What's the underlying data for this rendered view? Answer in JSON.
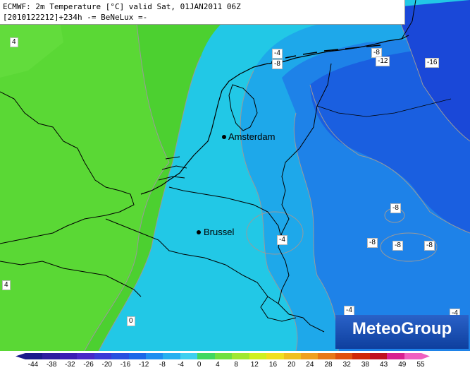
{
  "header": {
    "line1": "ECMWF: 2m Temperature [°C] valid Sat, 01JAN2011 06Z",
    "line2": "[2010122212]+234h -= BeNeLux =-"
  },
  "cities": [
    {
      "name": "Amsterdam"
    },
    {
      "name": "Brussel"
    }
  ],
  "contour_labels": [
    "4",
    "-4",
    "-8",
    "-8",
    "-12",
    "-16",
    "-8",
    "-8",
    "-8",
    "-8",
    "-4",
    "-4",
    "0",
    "-4",
    "4"
  ],
  "logo": {
    "text": "MeteoGroup"
  },
  "colorbar": {
    "ticks": [
      "-44",
      "-38",
      "-32",
      "-26",
      "-20",
      "-16",
      "-12",
      "-8",
      "-4",
      "0",
      "4",
      "8",
      "12",
      "16",
      "20",
      "24",
      "28",
      "32",
      "38",
      "43",
      "49",
      "55"
    ],
    "colors": [
      "#1a1a8c",
      "#2d1ea0",
      "#3c1eb4",
      "#4a28c8",
      "#3a3ad8",
      "#2850e0",
      "#1a68e8",
      "#1e8ef0",
      "#26b0f0",
      "#3ed0f0",
      "#40d860",
      "#70e040",
      "#a0e830",
      "#d0f020",
      "#f0e020",
      "#f0c020",
      "#f0a020",
      "#e87818",
      "#e05010",
      "#d02808",
      "#c01020",
      "#d82090",
      "#f060c0"
    ],
    "colors_meaning": "temperature color scale"
  }
}
